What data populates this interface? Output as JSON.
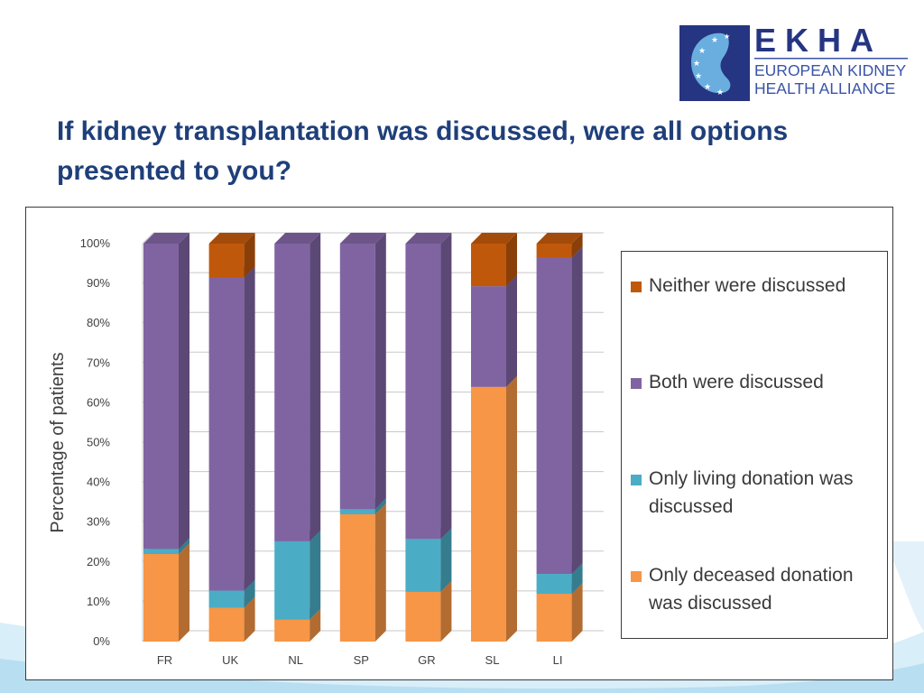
{
  "slide": {
    "title_line1": "If kidney transplantation was discussed, were all options",
    "title_line2": "presented to you?"
  },
  "logo": {
    "acronym": "EKHA",
    "name_line1": "EUROPEAN KIDNEY",
    "name_line2": "HEALTH ALLIANCE",
    "colors": {
      "navy": "#253582",
      "blue": "#3a54a8",
      "kidney": "#6aaee0"
    }
  },
  "chart_data": {
    "type": "bar",
    "stacked": true,
    "three_d": true,
    "categories": [
      "FR",
      "UK",
      "NL",
      "SP",
      "GR",
      "SL",
      "LI"
    ],
    "ylabel": "Percentage of patients",
    "ylim": [
      0,
      100
    ],
    "yticks": [
      "0%",
      "10%",
      "20%",
      "30%",
      "40%",
      "50%",
      "60%",
      "70%",
      "80%",
      "90%",
      "100%"
    ],
    "grid": true,
    "legend_position": "right",
    "series": [
      {
        "name": "Only deceased donation was discussed",
        "color": "#f79646",
        "values": [
          22,
          8.5,
          5.5,
          32,
          12.5,
          64,
          12
        ]
      },
      {
        "name": "Only living donation was discussed",
        "color": "#4bacc6",
        "values": [
          1.3,
          4.3,
          19.7,
          1.3,
          13.3,
          0,
          5
        ]
      },
      {
        "name": "Both were discussed",
        "color": "#8064a2",
        "values": [
          76.7,
          78.7,
          74.8,
          66.7,
          74.2,
          25.3,
          79.5
        ]
      },
      {
        "name": "Neither were discussed",
        "color": "#c0580c",
        "values": [
          0,
          8.5,
          0,
          0,
          0,
          10.7,
          3.5
        ]
      }
    ]
  },
  "legend": {
    "items": [
      {
        "line1": "Neither were discussed",
        "line2": "",
        "color": "#c0580c"
      },
      {
        "line1": "Both were discussed",
        "line2": "",
        "color": "#8064a2"
      },
      {
        "line1": "Only living donation was",
        "line2": "discussed",
        "color": "#4bacc6"
      },
      {
        "line1": "Only deceased donation",
        "line2": "was discussed",
        "color": "#f79646"
      }
    ]
  }
}
